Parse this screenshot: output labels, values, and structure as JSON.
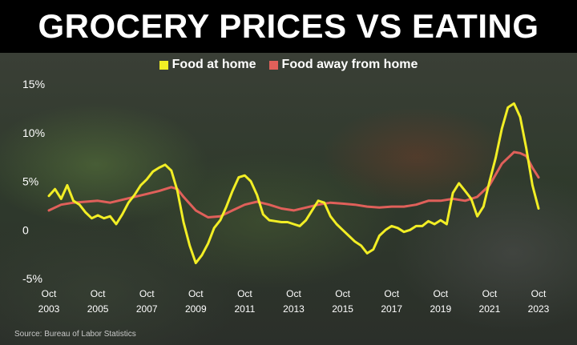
{
  "header": {
    "title": "GROCERY PRICES VS EATING OUT"
  },
  "footer": {
    "source": "Source: Bureau of Labor Statistics"
  },
  "colors": {
    "home": "#f2ee25",
    "away": "#e0605a",
    "tick_text": "#ffffff"
  },
  "chart_data": {
    "type": "line",
    "title": "GROCERY PRICES VS EATING OUT",
    "xlabel": "",
    "ylabel": "",
    "legend_position": "top-center",
    "grid": false,
    "xlim": [
      2003.75,
      2023.75
    ],
    "ylim": [
      -5,
      15
    ],
    "y_ticks": [
      {
        "value": 15,
        "label": "15%"
      },
      {
        "value": 10,
        "label": "10%"
      },
      {
        "value": 5,
        "label": "5%"
      },
      {
        "value": 0,
        "label": "0"
      },
      {
        "value": -5,
        "label": "-5%"
      }
    ],
    "x_ticks": [
      {
        "value": 2003.75,
        "month": "Oct",
        "year": "2003"
      },
      {
        "value": 2005.75,
        "month": "Oct",
        "year": "2005"
      },
      {
        "value": 2007.75,
        "month": "Oct",
        "year": "2007"
      },
      {
        "value": 2009.75,
        "month": "Oct",
        "year": "2009"
      },
      {
        "value": 2011.75,
        "month": "Oct",
        "year": "2011"
      },
      {
        "value": 2013.75,
        "month": "Oct",
        "year": "2013"
      },
      {
        "value": 2015.75,
        "month": "Oct",
        "year": "2015"
      },
      {
        "value": 2017.75,
        "month": "Oct",
        "year": "2017"
      },
      {
        "value": 2019.75,
        "month": "Oct",
        "year": "2019"
      },
      {
        "value": 2021.75,
        "month": "Oct",
        "year": "2021"
      },
      {
        "value": 2023.75,
        "month": "Oct",
        "year": "2023"
      }
    ],
    "series": [
      {
        "name": "Food at home",
        "points": [
          [
            2003.75,
            3.5
          ],
          [
            2004.0,
            4.2
          ],
          [
            2004.25,
            3.2
          ],
          [
            2004.5,
            4.6
          ],
          [
            2004.75,
            3.0
          ],
          [
            2005.0,
            2.6
          ],
          [
            2005.25,
            1.8
          ],
          [
            2005.5,
            1.2
          ],
          [
            2005.75,
            1.5
          ],
          [
            2006.0,
            1.2
          ],
          [
            2006.25,
            1.4
          ],
          [
            2006.5,
            0.6
          ],
          [
            2006.75,
            1.6
          ],
          [
            2007.0,
            2.8
          ],
          [
            2007.25,
            3.6
          ],
          [
            2007.5,
            4.6
          ],
          [
            2007.75,
            5.2
          ],
          [
            2008.0,
            6.0
          ],
          [
            2008.25,
            6.4
          ],
          [
            2008.5,
            6.7
          ],
          [
            2008.75,
            6.1
          ],
          [
            2009.0,
            4.0
          ],
          [
            2009.25,
            0.8
          ],
          [
            2009.5,
            -1.6
          ],
          [
            2009.75,
            -3.4
          ],
          [
            2010.0,
            -2.6
          ],
          [
            2010.25,
            -1.4
          ],
          [
            2010.5,
            0.2
          ],
          [
            2010.75,
            1.0
          ],
          [
            2011.0,
            2.4
          ],
          [
            2011.25,
            4.0
          ],
          [
            2011.5,
            5.4
          ],
          [
            2011.75,
            5.6
          ],
          [
            2012.0,
            5.0
          ],
          [
            2012.25,
            3.6
          ],
          [
            2012.5,
            1.6
          ],
          [
            2012.75,
            1.0
          ],
          [
            2013.0,
            0.9
          ],
          [
            2013.25,
            0.8
          ],
          [
            2013.5,
            0.8
          ],
          [
            2013.75,
            0.6
          ],
          [
            2014.0,
            0.4
          ],
          [
            2014.25,
            1.0
          ],
          [
            2014.5,
            2.0
          ],
          [
            2014.75,
            3.0
          ],
          [
            2015.0,
            2.8
          ],
          [
            2015.25,
            1.4
          ],
          [
            2015.5,
            0.6
          ],
          [
            2015.75,
            0.0
          ],
          [
            2016.0,
            -0.6
          ],
          [
            2016.25,
            -1.2
          ],
          [
            2016.5,
            -1.6
          ],
          [
            2016.75,
            -2.4
          ],
          [
            2017.0,
            -2.0
          ],
          [
            2017.25,
            -0.6
          ],
          [
            2017.5,
            0.0
          ],
          [
            2017.75,
            0.4
          ],
          [
            2018.0,
            0.2
          ],
          [
            2018.25,
            -0.2
          ],
          [
            2018.5,
            0.0
          ],
          [
            2018.75,
            0.4
          ],
          [
            2019.0,
            0.4
          ],
          [
            2019.25,
            0.9
          ],
          [
            2019.5,
            0.6
          ],
          [
            2019.75,
            1.0
          ],
          [
            2020.0,
            0.6
          ],
          [
            2020.25,
            3.8
          ],
          [
            2020.5,
            4.8
          ],
          [
            2020.75,
            4.0
          ],
          [
            2021.0,
            3.2
          ],
          [
            2021.25,
            1.4
          ],
          [
            2021.5,
            2.4
          ],
          [
            2021.75,
            5.0
          ],
          [
            2022.0,
            7.4
          ],
          [
            2022.25,
            10.4
          ],
          [
            2022.5,
            12.6
          ],
          [
            2022.75,
            13.0
          ],
          [
            2023.0,
            11.6
          ],
          [
            2023.25,
            8.4
          ],
          [
            2023.5,
            4.6
          ],
          [
            2023.75,
            2.2
          ]
        ]
      },
      {
        "name": "Food away from home",
        "points": [
          [
            2003.75,
            2.0
          ],
          [
            2004.25,
            2.6
          ],
          [
            2004.75,
            2.8
          ],
          [
            2005.25,
            2.9
          ],
          [
            2005.75,
            3.0
          ],
          [
            2006.25,
            2.8
          ],
          [
            2006.75,
            3.1
          ],
          [
            2007.25,
            3.4
          ],
          [
            2007.75,
            3.7
          ],
          [
            2008.25,
            4.0
          ],
          [
            2008.75,
            4.4
          ],
          [
            2009.0,
            4.2
          ],
          [
            2009.25,
            3.4
          ],
          [
            2009.75,
            2.0
          ],
          [
            2010.25,
            1.3
          ],
          [
            2010.75,
            1.4
          ],
          [
            2011.25,
            2.0
          ],
          [
            2011.75,
            2.6
          ],
          [
            2012.25,
            2.9
          ],
          [
            2012.75,
            2.6
          ],
          [
            2013.25,
            2.2
          ],
          [
            2013.75,
            2.0
          ],
          [
            2014.25,
            2.3
          ],
          [
            2014.75,
            2.6
          ],
          [
            2015.25,
            2.8
          ],
          [
            2015.75,
            2.7
          ],
          [
            2016.25,
            2.6
          ],
          [
            2016.75,
            2.4
          ],
          [
            2017.25,
            2.3
          ],
          [
            2017.75,
            2.4
          ],
          [
            2018.25,
            2.4
          ],
          [
            2018.75,
            2.6
          ],
          [
            2019.25,
            3.0
          ],
          [
            2019.75,
            3.0
          ],
          [
            2020.25,
            3.2
          ],
          [
            2020.75,
            3.0
          ],
          [
            2021.25,
            3.4
          ],
          [
            2021.75,
            4.6
          ],
          [
            2022.25,
            6.8
          ],
          [
            2022.75,
            8.0
          ],
          [
            2023.0,
            7.9
          ],
          [
            2023.25,
            7.6
          ],
          [
            2023.5,
            6.4
          ],
          [
            2023.75,
            5.4
          ]
        ]
      }
    ]
  }
}
